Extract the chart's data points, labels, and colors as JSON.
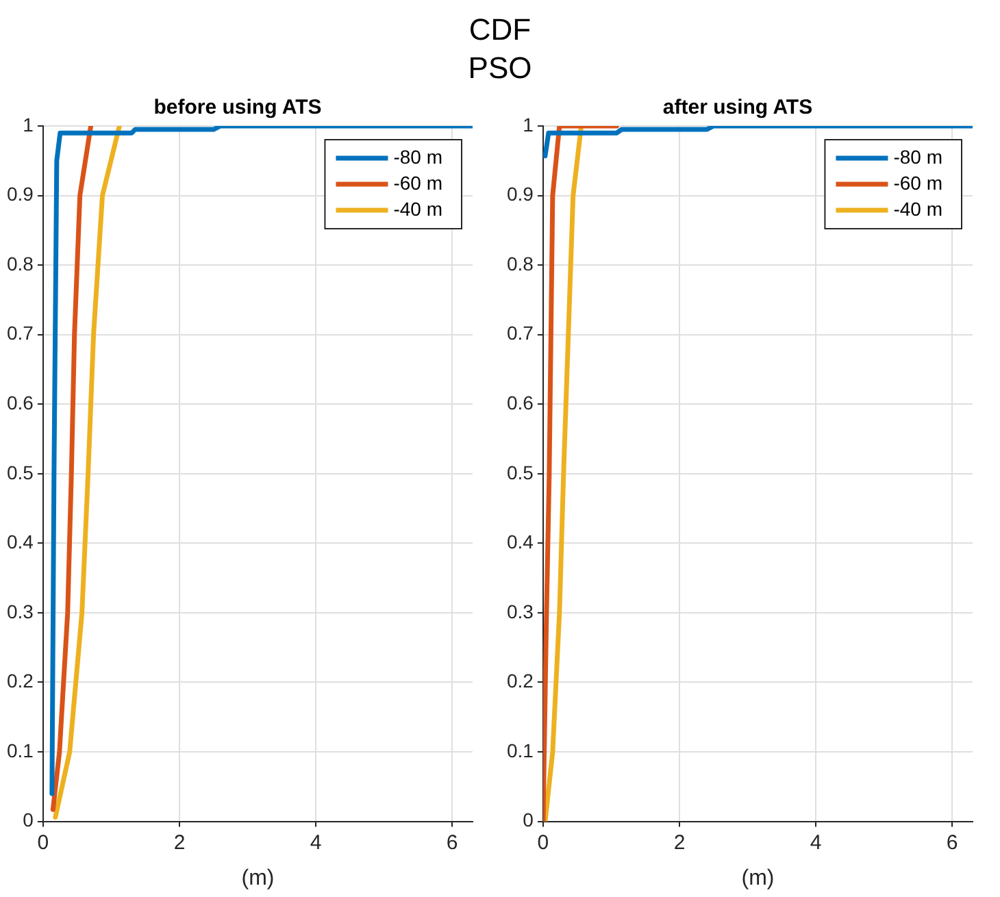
{
  "chart_data": [
    {
      "type": "line",
      "title": "before using ATS",
      "xlabel": "(m)",
      "annotations": [
        "CDF",
        "PSO"
      ],
      "xlim": [
        0,
        6.3
      ],
      "ylim": [
        0,
        1
      ],
      "xticks": [
        0,
        2,
        4,
        6
      ],
      "yticks": [
        0,
        0.1,
        0.2,
        0.3,
        0.4,
        0.5,
        0.6,
        0.7,
        0.8,
        0.9,
        1
      ],
      "grid": true,
      "legend": "top right",
      "line_style": "solid",
      "marker": "none",
      "series": [
        {
          "name": "-80 m",
          "color": "#0072bd",
          "x": [
            0.13,
            0.16,
            0.2,
            0.25,
            1.3,
            1.35,
            2.5,
            2.6,
            6.3
          ],
          "values": [
            0.04,
            0.5,
            0.95,
            0.99,
            0.99,
            0.995,
            0.995,
            1,
            1
          ]
        },
        {
          "name": "-60 m",
          "color": "#d95319",
          "x": [
            0.145,
            0.24,
            0.36,
            0.415,
            0.46,
            0.54,
            0.7
          ],
          "values": [
            0.017,
            0.1,
            0.3,
            0.5,
            0.7,
            0.9,
            1
          ]
        },
        {
          "name": "-40 m",
          "color": "#edb120",
          "x": [
            0.18,
            0.39,
            0.57,
            0.66,
            0.74,
            0.87,
            1.12
          ],
          "values": [
            0.006,
            0.1,
            0.3,
            0.5,
            0.7,
            0.9,
            1
          ]
        }
      ]
    },
    {
      "type": "line",
      "title": "after using ATS",
      "xlabel": "(m)",
      "xlim": [
        0,
        6.3
      ],
      "ylim": [
        0,
        1
      ],
      "xticks": [
        0,
        2,
        4,
        6
      ],
      "yticks": [
        0,
        0.1,
        0.2,
        0.3,
        0.4,
        0.5,
        0.6,
        0.7,
        0.8,
        0.9,
        1
      ],
      "grid": true,
      "legend": "top right",
      "line_style": "solid",
      "marker": "none",
      "series": [
        {
          "name": "-80 m",
          "color": "#0072bd",
          "x": [
            0.03,
            0.08,
            1.08,
            1.15,
            2.4,
            2.5,
            6.3
          ],
          "values": [
            0.957,
            0.99,
            0.99,
            0.995,
            0.995,
            1,
            1
          ]
        },
        {
          "name": "-60 m",
          "color": "#d95319",
          "x": [
            0,
            0.05,
            0.09,
            0.14,
            0.24,
            1.08
          ],
          "values": [
            0,
            0.3,
            0.5,
            0.9,
            1,
            1
          ]
        },
        {
          "name": "-40 m",
          "color": "#edb120",
          "x": [
            0.03,
            0.14,
            0.24,
            0.3,
            0.37,
            0.44,
            0.56
          ],
          "values": [
            0,
            0.1,
            0.3,
            0.5,
            0.7,
            0.9,
            1
          ]
        }
      ]
    }
  ]
}
